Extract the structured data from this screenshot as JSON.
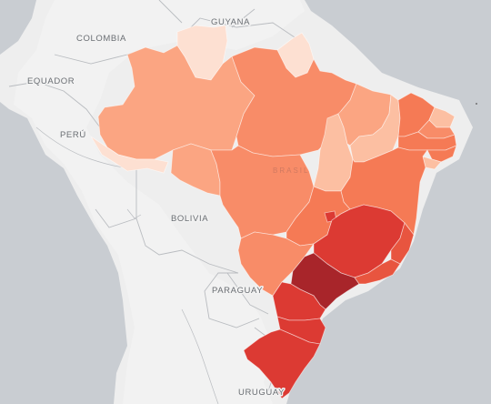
{
  "map": {
    "ocean_color": "#c9cdd2",
    "land_color": "#eeeeee",
    "labels": {
      "colombia": "COLOMBIA",
      "equador": "EQUADOR",
      "peru": "PERÚ",
      "bolivia": "BOLIVIA",
      "paraguay": "PARAGUAY",
      "uruguay": "URUGUAY",
      "guyana": "GUYANA",
      "brasil": "BRASIL"
    },
    "choropleth_scale": [
      "#fde0d2",
      "#fcbfa2",
      "#fba582",
      "#f88c68",
      "#f57a55",
      "#e8553f",
      "#dc3a33",
      "#a8252a"
    ]
  }
}
